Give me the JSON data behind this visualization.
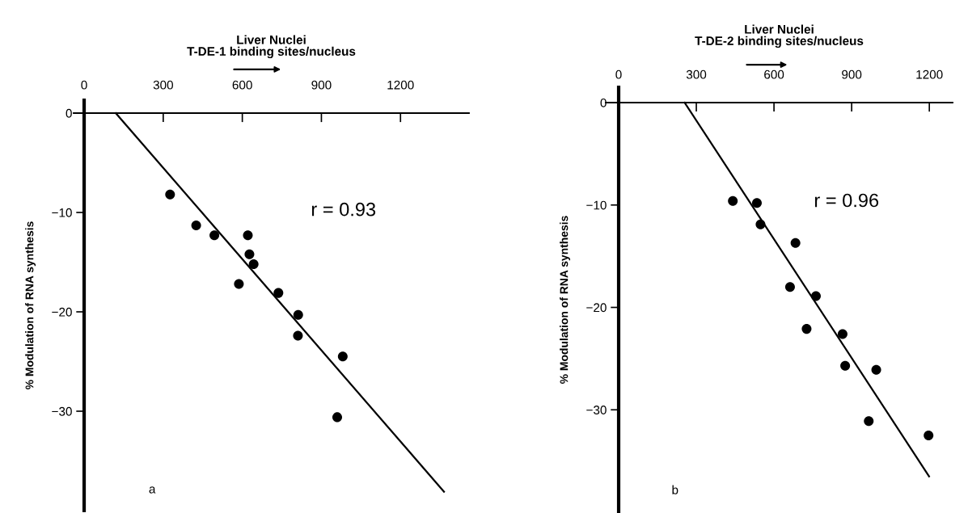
{
  "chart_data": [
    {
      "type": "scatter",
      "title": "Liver Nuclei",
      "xlabel": "T-DE-1 binding sites/nucleus",
      "ylabel": "% Modulation of RNA synthesis",
      "annotations": [
        "r = 0.93",
        "a"
      ],
      "xlim": [
        -40,
        1460
      ],
      "ylim": [
        -40,
        1.3
      ],
      "xticks": [
        0,
        300,
        600,
        900,
        1200
      ],
      "yticks": [
        0,
        -10,
        -20,
        -30
      ],
      "marker": "circle",
      "grid": false,
      "legend": false,
      "series": [
        {
          "color": "#000000",
          "x": [
            326,
            425,
            494,
            621,
            627,
            643,
            587,
            737,
            812,
            811,
            981,
            960
          ],
          "values": [
            -8.2,
            -11.3,
            -12.3,
            -12.3,
            -14.2,
            -15.2,
            -17.2,
            -18.1,
            -20.3,
            -22.4,
            -24.5,
            -30.6
          ]
        },
        {
          "type": "line",
          "marker": "none",
          "color": "#000000",
          "x": [
            120,
            1365
          ],
          "values": [
            0,
            -38.1
          ]
        }
      ]
    },
    {
      "type": "scatter",
      "title": "Liver Nuclei",
      "xlabel": "T-DE-2 binding sites/nucleus",
      "ylabel": "% Modulation of RNA synthesis",
      "annotations": [
        "r = 0.96",
        "b"
      ],
      "xlim": [
        -50,
        1290
      ],
      "ylim": [
        -40,
        1.5
      ],
      "xticks": [
        0,
        300,
        600,
        900,
        1200
      ],
      "yticks": [
        0,
        -10,
        -20,
        -30
      ],
      "marker": "circle",
      "grid": false,
      "legend": false,
      "series": [
        {
          "color": "#000000",
          "x": [
            441,
            534,
            548,
            683,
            662,
            762,
            726,
            865,
            875,
            995,
            966,
            1197
          ],
          "values": [
            -9.6,
            -9.8,
            -11.9,
            -13.7,
            -18.0,
            -18.9,
            -22.1,
            -22.6,
            -25.7,
            -26.1,
            -31.1,
            -32.5
          ]
        },
        {
          "type": "line",
          "marker": "none",
          "color": "#000000",
          "x": [
            255,
            1199
          ],
          "values": [
            0,
            -36.5
          ]
        }
      ]
    }
  ]
}
